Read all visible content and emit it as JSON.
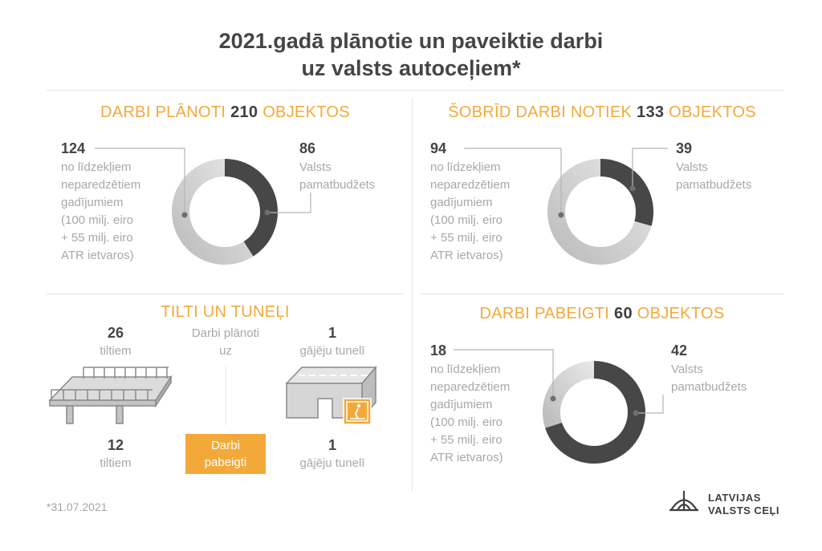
{
  "title_line1": "2021.gadā plānotie un paveiktie darbi",
  "title_line2": "uz valsts autoceļiem*",
  "common": {
    "donut_label_line1": "no līdzekļiem",
    "donut_label_line2": "neparedzētiem",
    "donut_label_line3": "gadījumiem",
    "donut_label_line4": "(100 milj. eiro",
    "donut_label_line5": "+ 55 milj. eiro",
    "donut_label_line6": "ATR ietvaros)",
    "budget_line1": "Valsts",
    "budget_line2": "pamatbudžets"
  },
  "planned": {
    "head_pre": "DARBI PLĀNOTI",
    "head_num": "210",
    "head_post": "OBJEKTOS",
    "other_value": "124",
    "budget_value": "86"
  },
  "ongoing": {
    "head_pre": "ŠOBRĪD DARBI NOTIEK",
    "head_num": "133",
    "head_post": "OBJEKTOS",
    "other_value": "94",
    "budget_value": "39"
  },
  "finished": {
    "head_pre": "DARBI PABEIGTI",
    "head_num": "60",
    "head_post": "OBJEKTOS",
    "other_value": "18",
    "budget_value": "42"
  },
  "bridges": {
    "head": "TILTI UN TUNEĻI",
    "planned_label_line1": "Darbi plānoti",
    "planned_label_line2": "uz",
    "finished_label_line1": "Darbi",
    "finished_label_line2": "pabeigti",
    "bridges_planned": "26",
    "bridges_label": "tiltiem",
    "bridges_finished": "12",
    "tunnels_planned": "1",
    "tunnels_label": "gājēju tunelī",
    "tunnels_finished": "1"
  },
  "footnote": "*31.07.2021",
  "logo_line1": "LATVIJAS",
  "logo_line2": "VALSTS CEĻI",
  "colors": {
    "accent": "#f3a93a",
    "budget_dark": "#474747",
    "other_light": "#c8c8c8"
  },
  "chart_data": [
    {
      "type": "pie",
      "title": "DARBI PLĀNOTI 210 OBJEKTOS",
      "categories": [
        "Valsts pamatbudžets",
        "no līdzekļiem neparedzētiem gadījumiem (100 milj. eiro + 55 milj. eiro ATR ietvaros)"
      ],
      "values": [
        86,
        124
      ]
    },
    {
      "type": "pie",
      "title": "ŠOBRĪD DARBI NOTIEK 133 OBJEKTOS",
      "categories": [
        "Valsts pamatbudžets",
        "no līdzekļiem neparedzētiem gadījumiem (100 milj. eiro + 55 milj. eiro ATR ietvaros)"
      ],
      "values": [
        39,
        94
      ]
    },
    {
      "type": "pie",
      "title": "DARBI PABEIGTI 60 OBJEKTOS",
      "categories": [
        "Valsts pamatbudžets",
        "no līdzekļiem neparedzētiem gadījumiem (100 milj. eiro + 55 milj. eiro ATR ietvaros)"
      ],
      "values": [
        42,
        18
      ]
    }
  ]
}
